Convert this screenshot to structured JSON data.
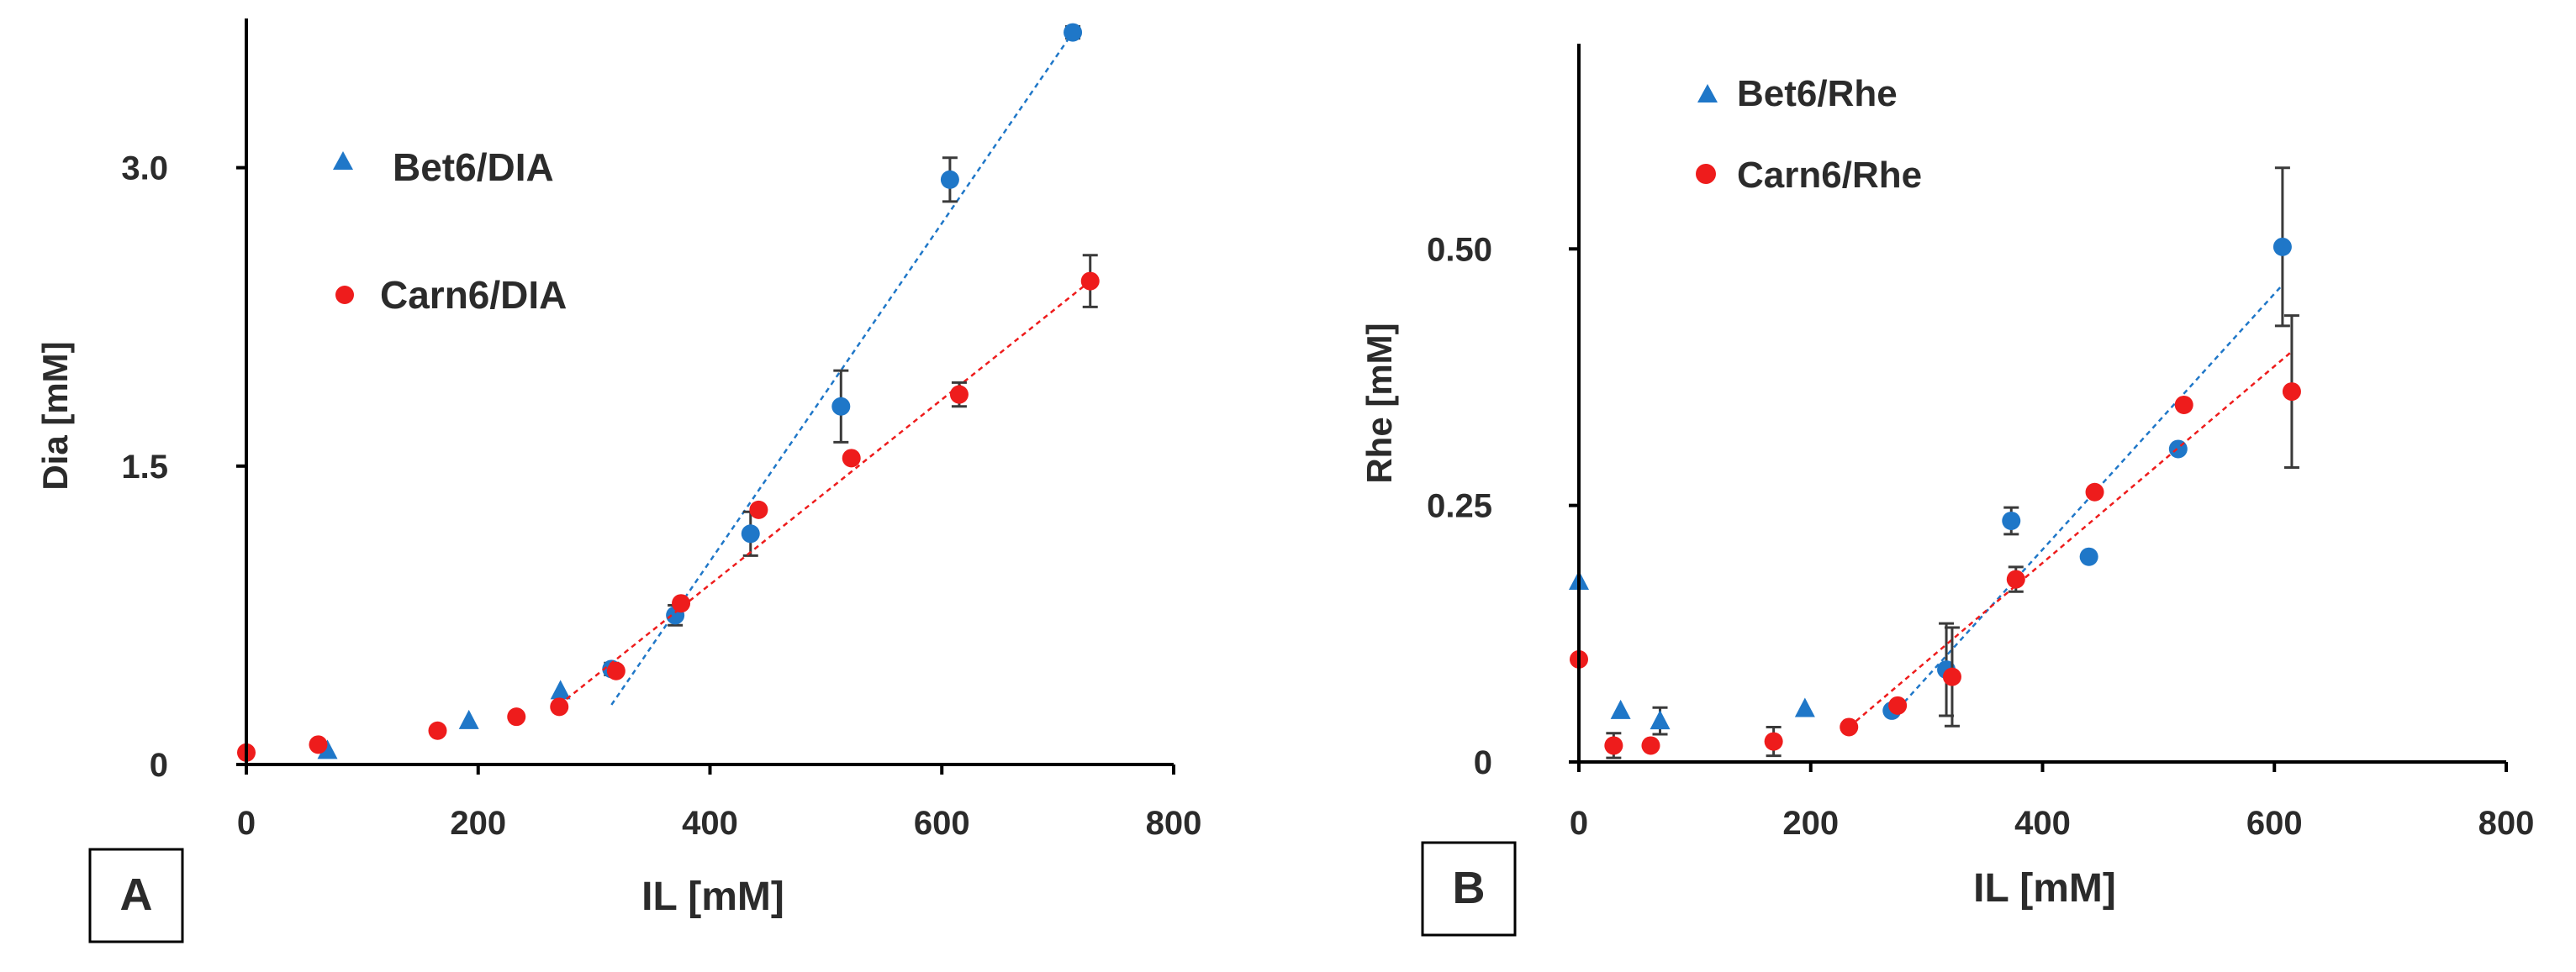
{
  "chart_data": [
    {
      "panel_label": "A",
      "type": "scatter",
      "xlabel": "IL [mM]",
      "ylabel": "Dia [mM]",
      "xlim": [
        0,
        800
      ],
      "ylim": [
        0,
        3.75
      ],
      "xticks": [
        0,
        200,
        400,
        600,
        800
      ],
      "xtick_labels": [
        "0",
        "200",
        "400",
        "600",
        "800"
      ],
      "yticks": [
        0,
        1.5,
        3.0
      ],
      "ytick_labels": [
        "0",
        "1.5",
        "3.0"
      ],
      "grid": false,
      "legend_position": "top-left",
      "series": [
        {
          "name": "Bet6/DIA",
          "legend_marker": "triangle",
          "color": "#1f77c8",
          "points": [
            {
              "x": 70,
              "y": 0.07,
              "marker": "triangle"
            },
            {
              "x": 192,
              "y": 0.22,
              "marker": "triangle"
            },
            {
              "x": 271,
              "y": 0.37,
              "marker": "triangle"
            },
            {
              "x": 315,
              "y": 0.48,
              "marker": "circle",
              "err": 0.03
            },
            {
              "x": 370,
              "y": 0.75,
              "marker": "circle",
              "err": 0.05
            },
            {
              "x": 435,
              "y": 1.16,
              "marker": "circle",
              "err": 0.11
            },
            {
              "x": 513,
              "y": 1.8,
              "marker": "circle",
              "err": 0.18
            },
            {
              "x": 607,
              "y": 2.94,
              "marker": "circle",
              "err": 0.11
            },
            {
              "x": 713,
              "y": 3.68,
              "marker": "circle",
              "err": 0.03
            }
          ],
          "trendline": {
            "x": [
              315,
              713
            ],
            "y": [
              0.3,
              3.68
            ]
          }
        },
        {
          "name": "Carn6/DIA",
          "legend_marker": "circle",
          "color": "#ee1c1c",
          "points": [
            {
              "x": 0,
              "y": 0.06,
              "marker": "circle"
            },
            {
              "x": 62,
              "y": 0.1,
              "marker": "circle"
            },
            {
              "x": 165,
              "y": 0.17,
              "marker": "circle"
            },
            {
              "x": 233,
              "y": 0.24,
              "marker": "circle"
            },
            {
              "x": 270,
              "y": 0.29,
              "marker": "circle"
            },
            {
              "x": 319,
              "y": 0.47,
              "marker": "circle"
            },
            {
              "x": 375,
              "y": 0.81,
              "marker": "circle"
            },
            {
              "x": 442,
              "y": 1.28,
              "marker": "circle"
            },
            {
              "x": 522,
              "y": 1.54,
              "marker": "circle"
            },
            {
              "x": 615,
              "y": 1.86,
              "marker": "circle",
              "err": 0.06
            },
            {
              "x": 728,
              "y": 2.43,
              "marker": "circle",
              "err": 0.13
            }
          ],
          "trendline": {
            "x": [
              270,
              728
            ],
            "y": [
              0.3,
              2.43
            ]
          }
        }
      ]
    },
    {
      "panel_label": "B",
      "type": "scatter",
      "xlabel": "IL [mM]",
      "ylabel": "Rhe [mM]",
      "xlim": [
        0,
        800
      ],
      "ylim": [
        0,
        0.7
      ],
      "xticks": [
        0,
        200,
        400,
        600,
        800
      ],
      "xtick_labels": [
        "0",
        "200",
        "400",
        "600",
        "800"
      ],
      "yticks": [
        0,
        0.25,
        0.5
      ],
      "ytick_labels": [
        "0",
        "0.25",
        "0.50"
      ],
      "grid": false,
      "legend_position": "top-left",
      "series": [
        {
          "name": "Bet6/Rhe",
          "legend_marker": "triangle",
          "color": "#1f77c8",
          "points": [
            {
              "x": 0,
              "y": 0.176,
              "marker": "triangle"
            },
            {
              "x": 36,
              "y": 0.05,
              "marker": "triangle"
            },
            {
              "x": 70,
              "y": 0.04,
              "marker": "triangle",
              "err": 0.013
            },
            {
              "x": 195,
              "y": 0.052,
              "marker": "triangle"
            },
            {
              "x": 270,
              "y": 0.05,
              "marker": "circle"
            },
            {
              "x": 317,
              "y": 0.09,
              "marker": "circle",
              "err": 0.045
            },
            {
              "x": 373,
              "y": 0.235,
              "marker": "circle",
              "err": 0.013
            },
            {
              "x": 440,
              "y": 0.2,
              "marker": "circle"
            },
            {
              "x": 517,
              "y": 0.305,
              "marker": "circle"
            },
            {
              "x": 607,
              "y": 0.502,
              "marker": "circle",
              "err": 0.077
            }
          ],
          "trendline": {
            "x": [
              270,
              607
            ],
            "y": [
              0.045,
              0.465
            ]
          }
        },
        {
          "name": "Carn6/Rhe",
          "legend_marker": "circle",
          "color": "#ee1c1c",
          "points": [
            {
              "x": 0,
              "y": 0.1,
              "marker": "circle"
            },
            {
              "x": 30,
              "y": 0.016,
              "marker": "circle",
              "err": 0.012
            },
            {
              "x": 62,
              "y": 0.016,
              "marker": "circle"
            },
            {
              "x": 168,
              "y": 0.02,
              "marker": "circle",
              "err": 0.014
            },
            {
              "x": 233,
              "y": 0.034,
              "marker": "circle"
            },
            {
              "x": 275,
              "y": 0.055,
              "marker": "circle"
            },
            {
              "x": 322,
              "y": 0.083,
              "marker": "circle",
              "err": 0.048
            },
            {
              "x": 377,
              "y": 0.178,
              "marker": "circle",
              "err": 0.012
            },
            {
              "x": 445,
              "y": 0.263,
              "marker": "circle"
            },
            {
              "x": 522,
              "y": 0.348,
              "marker": "circle"
            },
            {
              "x": 615,
              "y": 0.361,
              "marker": "circle",
              "err": 0.074
            }
          ],
          "trendline": {
            "x": [
              233,
              615
            ],
            "y": [
              0.034,
              0.4
            ]
          }
        }
      ]
    }
  ]
}
